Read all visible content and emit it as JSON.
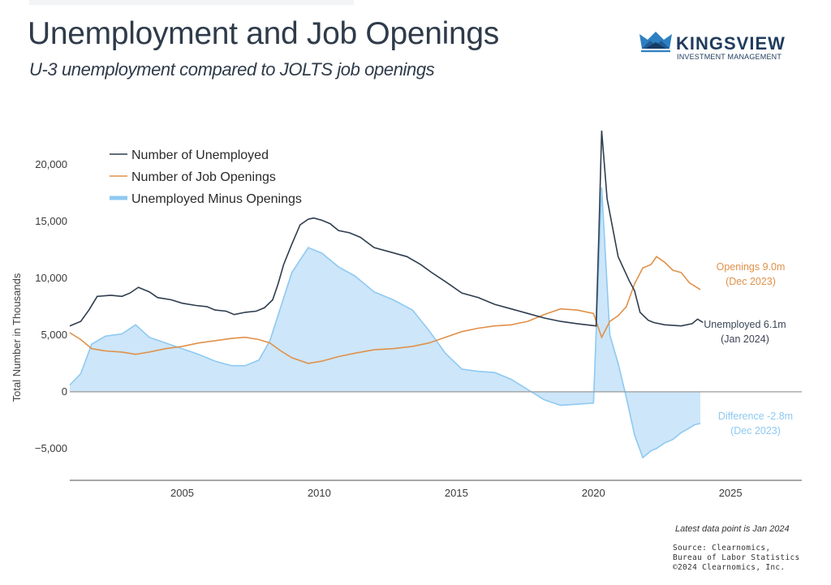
{
  "header": {
    "title": "Unemployment and Job Openings",
    "subtitle": "U-3 unemployment compared to JOLTS job openings"
  },
  "logo": {
    "brand": "KINGSVIEW",
    "tagline": "INVESTMENT MANAGEMENT",
    "icon": "crown-icon"
  },
  "colors": {
    "unemployed": "#2f3d4e",
    "openings": "#e0914a",
    "difference_fill": "#cde6f9",
    "difference_line": "#8ec9f2",
    "zero_line": "#9a9a9a",
    "axis_line": "#8a8a8a"
  },
  "chart_data": {
    "type": "line",
    "title": "Unemployment and Job Openings",
    "subtitle": "U-3 unemployment compared to JOLTS job openings",
    "xlabel": "",
    "ylabel": "Total Number in Thousands",
    "xlim": [
      2000.9,
      2027.6
    ],
    "ylim": [
      -7800,
      24500
    ],
    "x_ticks": [
      2005,
      2010,
      2015,
      2020,
      2025
    ],
    "x_tick_labels": [
      "2005",
      "2010",
      "2015",
      "2020",
      "2025"
    ],
    "y_ticks": [
      -5000,
      0,
      5000,
      10000,
      15000,
      20000
    ],
    "y_tick_labels": [
      "−5,000",
      "0",
      "5,000",
      "10,000",
      "15,000",
      "20,000"
    ],
    "grid": false,
    "legend_position": "top-left",
    "legend": [
      "Number of Unemployed",
      "Number of Job Openings",
      "Unemployed Minus Openings"
    ],
    "series": [
      {
        "name": "Number of Unemployed",
        "type": "line",
        "x": [
          2000.9,
          2001.3,
          2001.6,
          2001.9,
          2002.4,
          2002.8,
          2003.1,
          2003.4,
          2003.8,
          2004.1,
          2004.6,
          2005.0,
          2005.5,
          2005.9,
          2006.2,
          2006.6,
          2006.9,
          2007.3,
          2007.7,
          2008.0,
          2008.3,
          2008.5,
          2008.7,
          2009.0,
          2009.3,
          2009.6,
          2009.8,
          2010.1,
          2010.4,
          2010.7,
          2011.1,
          2011.5,
          2012.0,
          2012.6,
          2013.2,
          2013.7,
          2014.1,
          2014.6,
          2015.2,
          2015.8,
          2016.4,
          2017.0,
          2017.6,
          2018.2,
          2018.8,
          2019.4,
          2020.1,
          2020.2,
          2020.3,
          2020.5,
          2020.9,
          2021.3,
          2021.5,
          2021.7,
          2022.0,
          2022.2,
          2022.6,
          2023.2,
          2023.6,
          2023.8,
          2024.0
        ],
        "values": [
          5800,
          6200,
          7200,
          8400,
          8500,
          8400,
          8700,
          9200,
          8800,
          8300,
          8100,
          7800,
          7600,
          7500,
          7200,
          7100,
          6800,
          7000,
          7100,
          7400,
          8100,
          9500,
          11200,
          13000,
          14700,
          15200,
          15300,
          15100,
          14800,
          14200,
          14000,
          13600,
          12700,
          12300,
          11900,
          11200,
          10500,
          9700,
          8700,
          8300,
          7700,
          7300,
          6900,
          6500,
          6200,
          6000,
          5800,
          14000,
          23000,
          17000,
          11900,
          9800,
          8900,
          7000,
          6300,
          6100,
          5900,
          5800,
          6000,
          6400,
          6100
        ]
      },
      {
        "name": "Number of Job Openings",
        "type": "line",
        "x": [
          2000.9,
          2001.3,
          2001.7,
          2002.2,
          2002.8,
          2003.3,
          2003.8,
          2004.4,
          2005.0,
          2005.6,
          2006.2,
          2006.8,
          2007.3,
          2007.8,
          2008.2,
          2008.6,
          2009.0,
          2009.6,
          2010.1,
          2010.7,
          2011.3,
          2012.0,
          2012.7,
          2013.4,
          2014.0,
          2014.6,
          2015.2,
          2015.8,
          2016.4,
          2017.0,
          2017.6,
          2018.2,
          2018.8,
          2019.4,
          2020.0,
          2020.3,
          2020.6,
          2020.9,
          2021.2,
          2021.5,
          2021.8,
          2022.1,
          2022.3,
          2022.6,
          2022.9,
          2023.2,
          2023.5,
          2023.7,
          2023.9
        ],
        "values": [
          5200,
          4600,
          3800,
          3600,
          3500,
          3300,
          3500,
          3800,
          4000,
          4300,
          4500,
          4700,
          4800,
          4600,
          4300,
          3600,
          3000,
          2500,
          2700,
          3100,
          3400,
          3700,
          3800,
          4000,
          4300,
          4800,
          5300,
          5600,
          5800,
          5900,
          6200,
          6800,
          7300,
          7200,
          6900,
          4800,
          6200,
          6700,
          7500,
          9500,
          10900,
          11200,
          11900,
          11400,
          10700,
          10500,
          9600,
          9300,
          9000
        ]
      },
      {
        "name": "Unemployed Minus Openings",
        "type": "area",
        "x": [
          2000.9,
          2001.3,
          2001.7,
          2002.2,
          2002.8,
          2003.3,
          2003.8,
          2004.4,
          2005.0,
          2005.6,
          2006.2,
          2006.8,
          2007.3,
          2007.8,
          2008.2,
          2008.6,
          2009.0,
          2009.6,
          2010.1,
          2010.7,
          2011.3,
          2012.0,
          2012.7,
          2013.4,
          2014.0,
          2014.6,
          2015.2,
          2015.8,
          2016.4,
          2017.0,
          2017.6,
          2018.2,
          2018.8,
          2019.4,
          2020.0,
          2020.3,
          2020.6,
          2020.9,
          2021.2,
          2021.5,
          2021.8,
          2022.1,
          2022.3,
          2022.6,
          2022.9,
          2023.2,
          2023.5,
          2023.7,
          2023.9
        ],
        "values": [
          600,
          1600,
          4200,
          4900,
          5100,
          5900,
          4800,
          4300,
          3800,
          3300,
          2700,
          2300,
          2300,
          2800,
          4500,
          7500,
          10500,
          12700,
          12200,
          11000,
          10200,
          8800,
          8100,
          7200,
          5400,
          3400,
          2000,
          1800,
          1700,
          1100,
          200,
          -700,
          -1200,
          -1100,
          -1000,
          18000,
          5000,
          2500,
          -500,
          -3800,
          -5800,
          -5200,
          -5000,
          -4500,
          -4200,
          -3600,
          -3200,
          -2900,
          -2800
        ]
      }
    ],
    "annotations": [
      {
        "series": "Number of Job Openings",
        "lines": [
          "Openings 9.0m",
          "(Dec 2023)"
        ]
      },
      {
        "series": "Number of Unemployed",
        "lines": [
          "Unemployed 6.1m",
          "(Jan 2024)"
        ]
      },
      {
        "series": "Unemployed Minus Openings",
        "lines": [
          "Difference -2.8m",
          "(Dec 2023)"
        ]
      }
    ]
  },
  "footer": {
    "note": "Latest data point is Jan 2024",
    "source_lines": [
      "Source: Clearnomics,",
      "Bureau of Labor Statistics",
      "©2024 Clearnomics, Inc."
    ]
  }
}
